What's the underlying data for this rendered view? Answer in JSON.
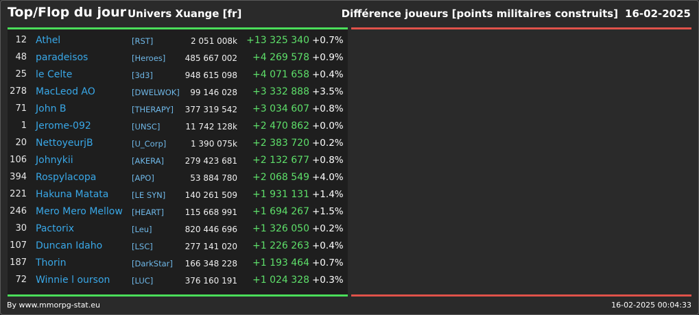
{
  "header": {
    "title": "Top/Flop du jour",
    "universe": "Univers Xuange [fr]",
    "metric": "Différence joueurs [points militaires construits]",
    "date": "16-02-2025"
  },
  "colors": {
    "accent_green": "#4ade5a",
    "accent_red": "#e0524a",
    "name_blue": "#39a8e8",
    "gain_green": "#5ee06a"
  },
  "top_players": [
    {
      "rank": "12",
      "name": "Athel",
      "alliance": "[RST]",
      "points": "2 051 008k",
      "diff": "+13 325 340",
      "pct": "+0.7%"
    },
    {
      "rank": "48",
      "name": "paradeisos",
      "alliance": "[Heroes]",
      "points": "485 667 002",
      "diff": "+4 269 578",
      "pct": "+0.9%"
    },
    {
      "rank": "25",
      "name": "le Celte",
      "alliance": "[3d3]",
      "points": "948 615 098",
      "diff": "+4 071 658",
      "pct": "+0.4%"
    },
    {
      "rank": "278",
      "name": "MacLeod AO",
      "alliance": "[DWELWOK]",
      "points": "99 146 028",
      "diff": "+3 332 888",
      "pct": "+3.5%"
    },
    {
      "rank": "71",
      "name": "John B",
      "alliance": "[THERAPY]",
      "points": "377 319 542",
      "diff": "+3 034 607",
      "pct": "+0.8%"
    },
    {
      "rank": "1",
      "name": "Jerome-092",
      "alliance": "[UNSC]",
      "points": "11 742 128k",
      "diff": "+2 470 862",
      "pct": "+0.0%"
    },
    {
      "rank": "20",
      "name": "NettoyeurjB",
      "alliance": "[U_Corp]",
      "points": "1 390 075k",
      "diff": "+2 383 720",
      "pct": "+0.2%"
    },
    {
      "rank": "106",
      "name": "Johnykii",
      "alliance": "[AKERA]",
      "points": "279 423 681",
      "diff": "+2 132 677",
      "pct": "+0.8%"
    },
    {
      "rank": "394",
      "name": "Rospylacopa",
      "alliance": "[APO]",
      "points": "53 884 780",
      "diff": "+2 068 549",
      "pct": "+4.0%"
    },
    {
      "rank": "221",
      "name": "Hakuna Matata",
      "alliance": "[LE SYN]",
      "points": "140 261 509",
      "diff": "+1 931 131",
      "pct": "+1.4%"
    },
    {
      "rank": "246",
      "name": "Mero Mero Mellow",
      "alliance": "[HEART]",
      "points": "115 668 991",
      "diff": "+1 694 267",
      "pct": "+1.5%"
    },
    {
      "rank": "30",
      "name": "Pactorix",
      "alliance": "[Leu]",
      "points": "820 446 696",
      "diff": "+1 326 050",
      "pct": "+0.2%"
    },
    {
      "rank": "107",
      "name": "Duncan Idaho",
      "alliance": "[LSC]",
      "points": "277 141 020",
      "diff": "+1 226 263",
      "pct": "+0.4%"
    },
    {
      "rank": "187",
      "name": "Thorin",
      "alliance": "[DarkStar]",
      "points": "166 348 228",
      "diff": "+1 193 464",
      "pct": "+0.7%"
    },
    {
      "rank": "72",
      "name": "Winnie l ourson",
      "alliance": "[LUC]",
      "points": "376 160 191",
      "diff": "+1 024 328",
      "pct": "+0.3%"
    }
  ],
  "footer": {
    "source": "By www.mmorpg-stat.eu",
    "timestamp": "16-02-2025 00:04:33"
  }
}
